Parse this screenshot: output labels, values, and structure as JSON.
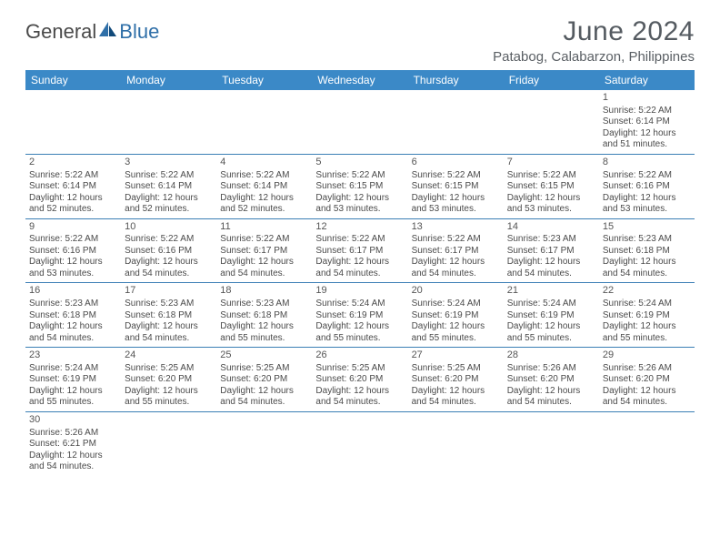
{
  "logo": {
    "text1": "General",
    "text2": "Blue"
  },
  "title": "June 2024",
  "subtitle": "Patabog, Calabarzon, Philippines",
  "colors": {
    "header_bg": "#3b89c7",
    "rule": "#3b7fb5",
    "text": "#4a4a4a"
  },
  "dayNames": [
    "Sunday",
    "Monday",
    "Tuesday",
    "Wednesday",
    "Thursday",
    "Friday",
    "Saturday"
  ],
  "weeks": [
    [
      null,
      null,
      null,
      null,
      null,
      null,
      {
        "n": "1",
        "sr": "5:22 AM",
        "ss": "6:14 PM",
        "dl": "12 hours and 51 minutes."
      }
    ],
    [
      {
        "n": "2",
        "sr": "5:22 AM",
        "ss": "6:14 PM",
        "dl": "12 hours and 52 minutes."
      },
      {
        "n": "3",
        "sr": "5:22 AM",
        "ss": "6:14 PM",
        "dl": "12 hours and 52 minutes."
      },
      {
        "n": "4",
        "sr": "5:22 AM",
        "ss": "6:14 PM",
        "dl": "12 hours and 52 minutes."
      },
      {
        "n": "5",
        "sr": "5:22 AM",
        "ss": "6:15 PM",
        "dl": "12 hours and 53 minutes."
      },
      {
        "n": "6",
        "sr": "5:22 AM",
        "ss": "6:15 PM",
        "dl": "12 hours and 53 minutes."
      },
      {
        "n": "7",
        "sr": "5:22 AM",
        "ss": "6:15 PM",
        "dl": "12 hours and 53 minutes."
      },
      {
        "n": "8",
        "sr": "5:22 AM",
        "ss": "6:16 PM",
        "dl": "12 hours and 53 minutes."
      }
    ],
    [
      {
        "n": "9",
        "sr": "5:22 AM",
        "ss": "6:16 PM",
        "dl": "12 hours and 53 minutes."
      },
      {
        "n": "10",
        "sr": "5:22 AM",
        "ss": "6:16 PM",
        "dl": "12 hours and 54 minutes."
      },
      {
        "n": "11",
        "sr": "5:22 AM",
        "ss": "6:17 PM",
        "dl": "12 hours and 54 minutes."
      },
      {
        "n": "12",
        "sr": "5:22 AM",
        "ss": "6:17 PM",
        "dl": "12 hours and 54 minutes."
      },
      {
        "n": "13",
        "sr": "5:22 AM",
        "ss": "6:17 PM",
        "dl": "12 hours and 54 minutes."
      },
      {
        "n": "14",
        "sr": "5:23 AM",
        "ss": "6:17 PM",
        "dl": "12 hours and 54 minutes."
      },
      {
        "n": "15",
        "sr": "5:23 AM",
        "ss": "6:18 PM",
        "dl": "12 hours and 54 minutes."
      }
    ],
    [
      {
        "n": "16",
        "sr": "5:23 AM",
        "ss": "6:18 PM",
        "dl": "12 hours and 54 minutes."
      },
      {
        "n": "17",
        "sr": "5:23 AM",
        "ss": "6:18 PM",
        "dl": "12 hours and 54 minutes."
      },
      {
        "n": "18",
        "sr": "5:23 AM",
        "ss": "6:18 PM",
        "dl": "12 hours and 55 minutes."
      },
      {
        "n": "19",
        "sr": "5:24 AM",
        "ss": "6:19 PM",
        "dl": "12 hours and 55 minutes."
      },
      {
        "n": "20",
        "sr": "5:24 AM",
        "ss": "6:19 PM",
        "dl": "12 hours and 55 minutes."
      },
      {
        "n": "21",
        "sr": "5:24 AM",
        "ss": "6:19 PM",
        "dl": "12 hours and 55 minutes."
      },
      {
        "n": "22",
        "sr": "5:24 AM",
        "ss": "6:19 PM",
        "dl": "12 hours and 55 minutes."
      }
    ],
    [
      {
        "n": "23",
        "sr": "5:24 AM",
        "ss": "6:19 PM",
        "dl": "12 hours and 55 minutes."
      },
      {
        "n": "24",
        "sr": "5:25 AM",
        "ss": "6:20 PM",
        "dl": "12 hours and 55 minutes."
      },
      {
        "n": "25",
        "sr": "5:25 AM",
        "ss": "6:20 PM",
        "dl": "12 hours and 54 minutes."
      },
      {
        "n": "26",
        "sr": "5:25 AM",
        "ss": "6:20 PM",
        "dl": "12 hours and 54 minutes."
      },
      {
        "n": "27",
        "sr": "5:25 AM",
        "ss": "6:20 PM",
        "dl": "12 hours and 54 minutes."
      },
      {
        "n": "28",
        "sr": "5:26 AM",
        "ss": "6:20 PM",
        "dl": "12 hours and 54 minutes."
      },
      {
        "n": "29",
        "sr": "5:26 AM",
        "ss": "6:20 PM",
        "dl": "12 hours and 54 minutes."
      }
    ],
    [
      {
        "n": "30",
        "sr": "5:26 AM",
        "ss": "6:21 PM",
        "dl": "12 hours and 54 minutes."
      },
      null,
      null,
      null,
      null,
      null,
      null
    ]
  ],
  "labels": {
    "sunrise": "Sunrise:",
    "sunset": "Sunset:",
    "daylight": "Daylight:"
  }
}
